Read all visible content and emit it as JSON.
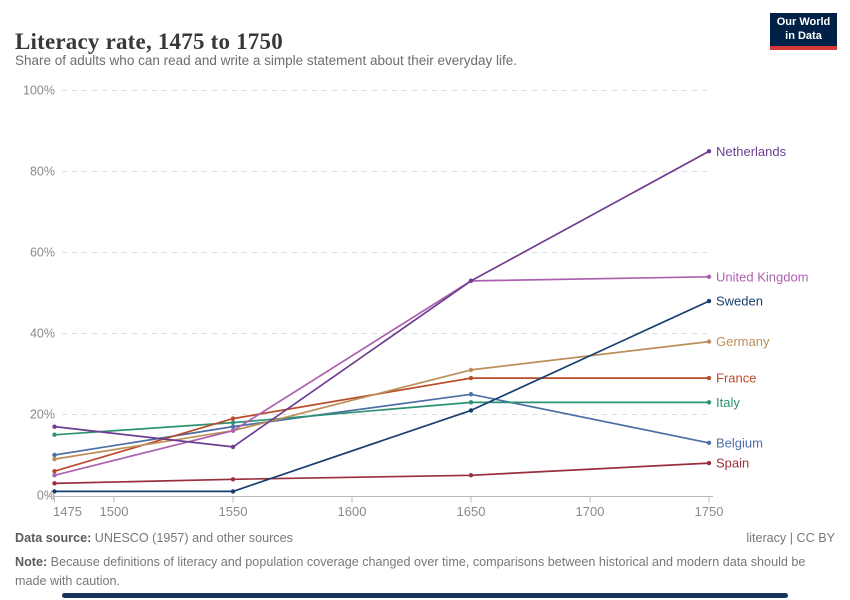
{
  "header": {
    "title": "Literacy rate, 1475 to 1750",
    "subtitle": "Share of adults who can read and write a simple statement about their everyday life."
  },
  "logo": {
    "line1": "Our World",
    "line2": "in Data",
    "bg": "#002147",
    "accent": "#d73a36"
  },
  "chart_data": {
    "type": "line",
    "title": "Literacy rate, 1475 to 1750",
    "xlabel": "",
    "ylabel": "",
    "xlim": [
      1471,
      1752
    ],
    "ylim": [
      0,
      100
    ],
    "grid": "horizontal-dashed",
    "legend_position": "right-of-line-ends",
    "x_ticks": [
      {
        "v": 1475,
        "label": "1475"
      },
      {
        "v": 1500,
        "label": "1500"
      },
      {
        "v": 1550,
        "label": "1550"
      },
      {
        "v": 1600,
        "label": "1600"
      },
      {
        "v": 1650,
        "label": "1650"
      },
      {
        "v": 1700,
        "label": "1700"
      },
      {
        "v": 1750,
        "label": "1750"
      }
    ],
    "y_ticks": [
      {
        "v": 0,
        "label": "0%"
      },
      {
        "v": 20,
        "label": "20%"
      },
      {
        "v": 40,
        "label": "40%"
      },
      {
        "v": 60,
        "label": "60%"
      },
      {
        "v": 80,
        "label": "80%"
      },
      {
        "v": 100,
        "label": "100%"
      }
    ],
    "series": [
      {
        "name": "Spain",
        "color": "#9a2e3f",
        "points": [
          [
            1475,
            3
          ],
          [
            1550,
            4
          ],
          [
            1650,
            5
          ],
          [
            1750,
            8
          ]
        ]
      },
      {
        "name": "Belgium",
        "color": "#4c6fa5",
        "points": [
          [
            1475,
            10
          ],
          [
            1550,
            17
          ],
          [
            1650,
            25
          ],
          [
            1750,
            13
          ]
        ]
      },
      {
        "name": "Italy",
        "color": "#2e9175",
        "points": [
          [
            1475,
            15
          ],
          [
            1550,
            18
          ],
          [
            1650,
            23
          ],
          [
            1750,
            23
          ]
        ]
      },
      {
        "name": "France",
        "color": "#bb4b28",
        "points": [
          [
            1475,
            6
          ],
          [
            1550,
            19
          ],
          [
            1650,
            29
          ],
          [
            1750,
            29
          ]
        ]
      },
      {
        "name": "Germany",
        "color": "#bc8e5a",
        "points": [
          [
            1475,
            9
          ],
          [
            1550,
            16
          ],
          [
            1650,
            31
          ],
          [
            1750,
            38
          ]
        ]
      },
      {
        "name": "Sweden",
        "color": "#163e70",
        "points": [
          [
            1475,
            1
          ],
          [
            1550,
            1
          ],
          [
            1650,
            21
          ],
          [
            1750,
            48
          ]
        ]
      },
      {
        "name": "United Kingdom",
        "color": "#ac61ae",
        "points": [
          [
            1475,
            5
          ],
          [
            1550,
            16
          ],
          [
            1650,
            53
          ],
          [
            1750,
            54
          ]
        ]
      },
      {
        "name": "Netherlands",
        "color": "#6d3e91",
        "points": [
          [
            1475,
            17
          ],
          [
            1550,
            12
          ],
          [
            1650,
            53
          ],
          [
            1750,
            85
          ]
        ]
      }
    ]
  },
  "footer": {
    "source_label": "Data source:",
    "source_text": " UNESCO (1957) and other sources",
    "license": "literacy | CC BY",
    "note_label": "Note:",
    "note_text": " Because definitions of literacy and population coverage changed over time, comparisons between historical and modern data should be made with caution."
  }
}
